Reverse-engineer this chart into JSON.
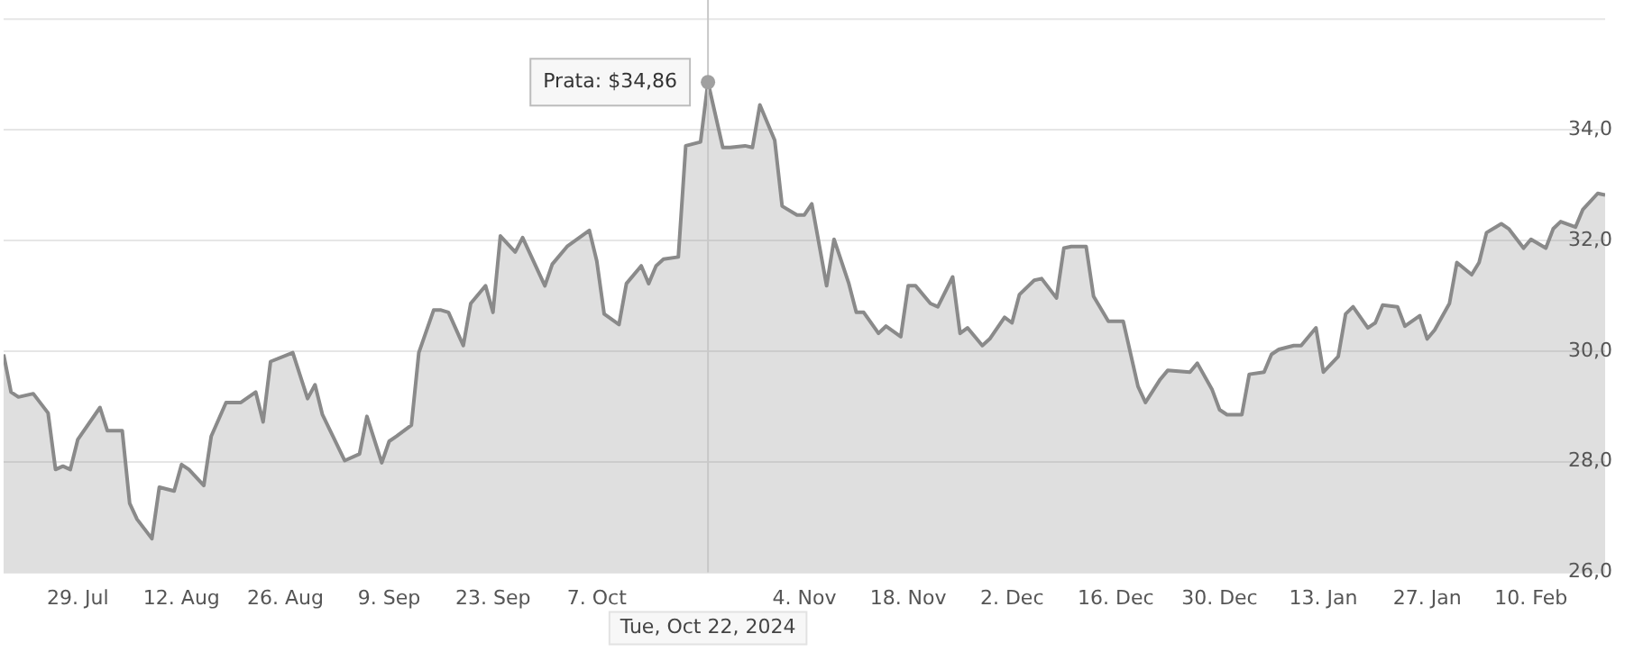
{
  "chart_data": {
    "type": "area",
    "color": "#8a8a8a",
    "x": [
      "2024-07-19",
      "2024-07-20",
      "2024-07-21",
      "2024-07-23",
      "2024-07-25",
      "2024-07-26",
      "2024-07-27",
      "2024-07-28",
      "2024-07-29",
      "2024-08-01",
      "2024-08-02",
      "2024-08-04",
      "2024-08-05",
      "2024-08-06",
      "2024-08-08",
      "2024-08-09",
      "2024-08-11",
      "2024-08-12",
      "2024-08-13",
      "2024-08-15",
      "2024-08-16",
      "2024-08-18",
      "2024-08-20",
      "2024-08-22",
      "2024-08-23",
      "2024-08-24",
      "2024-08-27",
      "2024-08-29",
      "2024-08-30",
      "2024-08-31",
      "2024-09-02",
      "2024-09-03",
      "2024-09-05",
      "2024-09-06",
      "2024-09-08",
      "2024-09-09",
      "2024-09-10",
      "2024-09-12",
      "2024-09-13",
      "2024-09-15",
      "2024-09-16",
      "2024-09-17",
      "2024-09-19",
      "2024-09-20",
      "2024-09-22",
      "2024-09-23",
      "2024-09-24",
      "2024-09-26",
      "2024-09-27",
      "2024-09-30",
      "2024-10-01",
      "2024-10-03",
      "2024-10-06",
      "2024-10-07",
      "2024-10-08",
      "2024-10-10",
      "2024-10-11",
      "2024-10-13",
      "2024-10-14",
      "2024-10-15",
      "2024-10-16",
      "2024-10-18",
      "2024-10-19",
      "2024-10-21",
      "2024-10-22",
      "2024-10-24",
      "2024-10-25",
      "2024-10-27",
      "2024-10-28",
      "2024-10-29",
      "2024-10-31",
      "2024-11-01",
      "2024-11-03",
      "2024-11-04",
      "2024-11-05",
      "2024-11-07",
      "2024-11-08",
      "2024-11-10",
      "2024-11-11",
      "2024-11-12",
      "2024-11-14",
      "2024-11-15",
      "2024-11-17",
      "2024-11-18",
      "2024-11-19",
      "2024-11-21",
      "2024-11-22",
      "2024-11-24",
      "2024-11-25",
      "2024-11-26",
      "2024-11-28",
      "2024-11-29",
      "2024-12-01",
      "2024-12-02",
      "2024-12-03",
      "2024-12-05",
      "2024-12-06",
      "2024-12-08",
      "2024-12-09",
      "2024-12-10",
      "2024-12-12",
      "2024-12-13",
      "2024-12-15",
      "2024-12-17",
      "2024-12-19",
      "2024-12-20",
      "2024-12-22",
      "2024-12-23",
      "2024-12-26",
      "2024-12-27",
      "2024-12-29",
      "2024-12-30",
      "2024-12-31",
      "2025-01-02",
      "2025-01-03",
      "2025-01-05",
      "2025-01-06",
      "2025-01-07",
      "2025-01-09",
      "2025-01-10",
      "2025-01-12",
      "2025-01-13",
      "2025-01-15",
      "2025-01-16",
      "2025-01-17",
      "2025-01-19",
      "2025-01-20",
      "2025-01-21",
      "2025-01-23",
      "2025-01-24",
      "2025-01-26",
      "2025-01-27",
      "2025-01-28",
      "2025-01-30",
      "2025-01-31",
      "2025-02-02",
      "2025-02-03",
      "2025-02-04",
      "2025-02-06",
      "2025-02-07",
      "2025-02-09",
      "2025-02-10",
      "2025-02-12",
      "2025-02-13",
      "2025-02-14",
      "2025-02-16",
      "2025-02-17",
      "2025-02-19",
      "2025-02-20"
    ],
    "values": [
      29.94,
      29.26,
      29.17,
      29.23,
      28.88,
      27.86,
      27.92,
      27.86,
      28.4,
      28.98,
      28.56,
      28.56,
      27.25,
      26.96,
      26.61,
      27.54,
      27.47,
      27.95,
      27.86,
      27.57,
      28.46,
      29.07,
      29.07,
      29.26,
      28.72,
      29.81,
      29.97,
      29.14,
      29.39,
      28.85,
      28.3,
      28.02,
      28.14,
      28.82,
      27.98,
      28.37,
      28.46,
      28.66,
      29.97,
      30.74,
      30.74,
      30.7,
      30.1,
      30.86,
      31.18,
      30.7,
      32.08,
      31.79,
      32.05,
      31.18,
      31.57,
      31.89,
      32.18,
      31.63,
      30.67,
      30.48,
      31.22,
      31.54,
      31.22,
      31.54,
      31.66,
      31.7,
      33.71,
      33.78,
      34.86,
      33.68,
      33.68,
      33.71,
      33.68,
      34.45,
      33.81,
      32.62,
      32.46,
      32.46,
      32.66,
      31.18,
      32.02,
      31.22,
      30.7,
      30.7,
      30.32,
      30.45,
      30.26,
      31.18,
      31.18,
      30.86,
      30.8,
      31.34,
      30.32,
      30.42,
      30.1,
      30.22,
      30.61,
      30.51,
      31.02,
      31.28,
      31.31,
      30.96,
      31.86,
      31.89,
      31.89,
      30.99,
      30.54,
      30.54,
      29.36,
      29.07,
      29.49,
      29.65,
      29.62,
      29.78,
      29.3,
      28.94,
      28.85,
      28.85,
      29.58,
      29.62,
      29.94,
      30.03,
      30.1,
      30.1,
      30.42,
      29.62,
      29.9,
      30.67,
      30.8,
      30.42,
      30.51,
      30.83,
      30.8,
      30.45,
      30.64,
      30.22,
      30.38,
      30.86,
      31.6,
      31.38,
      31.6,
      32.14,
      32.3,
      32.21,
      31.86,
      32.02,
      31.86,
      32.21,
      32.34,
      32.24,
      32.56,
      32.85,
      32.82
    ],
    "xlim": [
      "2024-07-19",
      "2025-02-20"
    ],
    "xticks": [
      {
        "value": "2024-07-29",
        "label": "29. Jul"
      },
      {
        "value": "2024-08-12",
        "label": "12. Aug"
      },
      {
        "value": "2024-08-26",
        "label": "26. Aug"
      },
      {
        "value": "2024-09-09",
        "label": "9. Sep"
      },
      {
        "value": "2024-09-23",
        "label": "23. Sep"
      },
      {
        "value": "2024-10-07",
        "label": "7. Oct"
      },
      {
        "value": "2024-11-04",
        "label": "4. Nov"
      },
      {
        "value": "2024-11-18",
        "label": "18. Nov"
      },
      {
        "value": "2024-12-02",
        "label": "2. Dec"
      },
      {
        "value": "2024-12-16",
        "label": "16. Dec"
      },
      {
        "value": "2024-12-30",
        "label": "30. Dec"
      },
      {
        "value": "2025-01-13",
        "label": "13. Jan"
      },
      {
        "value": "2025-01-27",
        "label": "27. Jan"
      },
      {
        "value": "2025-02-10",
        "label": "10. Feb"
      }
    ],
    "ylim": [
      26,
      36
    ],
    "yticks": [
      {
        "value": 26,
        "label": "26,0"
      },
      {
        "value": 28,
        "label": "28,0"
      },
      {
        "value": 30,
        "label": "30,0"
      },
      {
        "value": 32,
        "label": "32,0"
      },
      {
        "value": 34,
        "label": "34,0"
      }
    ],
    "grid": "y",
    "ref_lines": [
      {
        "axis": "x",
        "value": "2024-10-22",
        "label": "Tue, Oct 22, 2024",
        "color": "#c8c8c8"
      }
    ],
    "annotations": [
      {
        "text": "Prata: $34,86",
        "x": "2024-10-22",
        "y": 34.86
      }
    ]
  }
}
